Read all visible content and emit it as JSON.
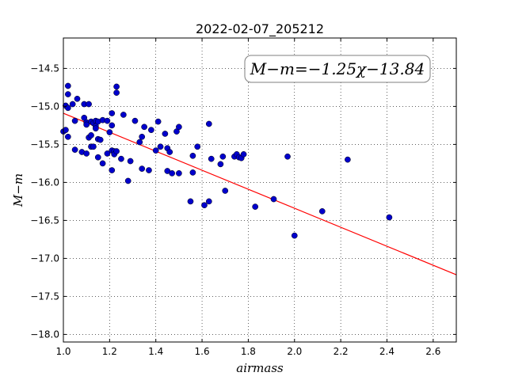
{
  "chart_data": {
    "type": "scatter",
    "title": "2022-02-07_205212",
    "xlabel": "airmass",
    "ylabel": "M−m",
    "xlim": [
      1.0,
      2.7
    ],
    "ylim": [
      -18.1,
      -14.1
    ],
    "y_inverted": true,
    "grid": true,
    "x_ticks": [
      1.0,
      1.2,
      1.4,
      1.6,
      1.8,
      2.0,
      2.2,
      2.4,
      2.6
    ],
    "x_tick_labels": [
      "1.0",
      "1.2",
      "1.4",
      "1.6",
      "1.8",
      "2.0",
      "2.2",
      "2.4",
      "2.6"
    ],
    "y_ticks": [
      -14.5,
      -15.0,
      -15.5,
      -16.0,
      -16.5,
      -17.0,
      -17.5,
      -18.0
    ],
    "y_tick_labels": [
      "−14.5",
      "−15.0",
      "−15.5",
      "−16.0",
      "−16.5",
      "−17.0",
      "−17.5",
      "−18.0"
    ],
    "annotation": "M−m=−1.25χ−13.84",
    "annotation_placement": "top-right",
    "colors": {
      "points": "#0000cc",
      "fit_line": "#ff0000"
    },
    "fit": {
      "slope": -1.25,
      "intercept": -13.84,
      "x_range": [
        1.0,
        2.7
      ]
    },
    "points": [
      {
        "x": 1.0,
        "y": -15.33
      },
      {
        "x": 1.01,
        "y": -14.99
      },
      {
        "x": 1.01,
        "y": -15.31
      },
      {
        "x": 1.02,
        "y": -14.73
      },
      {
        "x": 1.02,
        "y": -14.84
      },
      {
        "x": 1.02,
        "y": -15.02
      },
      {
        "x": 1.02,
        "y": -15.4
      },
      {
        "x": 1.04,
        "y": -14.97
      },
      {
        "x": 1.05,
        "y": -15.19
      },
      {
        "x": 1.05,
        "y": -15.57
      },
      {
        "x": 1.06,
        "y": -14.9
      },
      {
        "x": 1.08,
        "y": -15.6
      },
      {
        "x": 1.09,
        "y": -14.97
      },
      {
        "x": 1.09,
        "y": -15.15
      },
      {
        "x": 1.1,
        "y": -15.21
      },
      {
        "x": 1.1,
        "y": -15.24
      },
      {
        "x": 1.1,
        "y": -15.62
      },
      {
        "x": 1.11,
        "y": -14.97
      },
      {
        "x": 1.11,
        "y": -15.41
      },
      {
        "x": 1.12,
        "y": -15.2
      },
      {
        "x": 1.12,
        "y": -15.38
      },
      {
        "x": 1.12,
        "y": -15.53
      },
      {
        "x": 1.13,
        "y": -15.22
      },
      {
        "x": 1.13,
        "y": -15.53
      },
      {
        "x": 1.14,
        "y": -15.19
      },
      {
        "x": 1.14,
        "y": -15.26
      },
      {
        "x": 1.14,
        "y": -15.29
      },
      {
        "x": 1.15,
        "y": -15.2
      },
      {
        "x": 1.15,
        "y": -15.43
      },
      {
        "x": 1.15,
        "y": -15.67
      },
      {
        "x": 1.16,
        "y": -15.44
      },
      {
        "x": 1.17,
        "y": -15.75
      },
      {
        "x": 1.17,
        "y": -15.18
      },
      {
        "x": 1.19,
        "y": -15.19
      },
      {
        "x": 1.19,
        "y": -15.62
      },
      {
        "x": 1.2,
        "y": -15.34
      },
      {
        "x": 1.21,
        "y": -15.09
      },
      {
        "x": 1.21,
        "y": -15.25
      },
      {
        "x": 1.21,
        "y": -15.58
      },
      {
        "x": 1.21,
        "y": -15.84
      },
      {
        "x": 1.22,
        "y": -15.59
      },
      {
        "x": 1.22,
        "y": -15.63
      },
      {
        "x": 1.23,
        "y": -15.59
      },
      {
        "x": 1.23,
        "y": -14.74
      },
      {
        "x": 1.23,
        "y": -14.82
      },
      {
        "x": 1.25,
        "y": -15.69
      },
      {
        "x": 1.26,
        "y": -15.11
      },
      {
        "x": 1.28,
        "y": -15.98
      },
      {
        "x": 1.29,
        "y": -15.72
      },
      {
        "x": 1.31,
        "y": -15.19
      },
      {
        "x": 1.33,
        "y": -15.47
      },
      {
        "x": 1.34,
        "y": -15.4
      },
      {
        "x": 1.34,
        "y": -15.82
      },
      {
        "x": 1.35,
        "y": -15.27
      },
      {
        "x": 1.37,
        "y": -15.84
      },
      {
        "x": 1.38,
        "y": -15.31
      },
      {
        "x": 1.4,
        "y": -15.58
      },
      {
        "x": 1.41,
        "y": -15.2
      },
      {
        "x": 1.42,
        "y": -15.53
      },
      {
        "x": 1.44,
        "y": -15.36
      },
      {
        "x": 1.45,
        "y": -15.55
      },
      {
        "x": 1.45,
        "y": -15.85
      },
      {
        "x": 1.46,
        "y": -15.6
      },
      {
        "x": 1.47,
        "y": -15.88
      },
      {
        "x": 1.49,
        "y": -15.33
      },
      {
        "x": 1.5,
        "y": -15.27
      },
      {
        "x": 1.5,
        "y": -15.88
      },
      {
        "x": 1.55,
        "y": -16.25
      },
      {
        "x": 1.56,
        "y": -15.65
      },
      {
        "x": 1.56,
        "y": -15.87
      },
      {
        "x": 1.58,
        "y": -15.53
      },
      {
        "x": 1.61,
        "y": -16.3
      },
      {
        "x": 1.63,
        "y": -16.25
      },
      {
        "x": 1.63,
        "y": -15.23
      },
      {
        "x": 1.64,
        "y": -15.69
      },
      {
        "x": 1.68,
        "y": -15.76
      },
      {
        "x": 1.69,
        "y": -15.66
      },
      {
        "x": 1.7,
        "y": -16.11
      },
      {
        "x": 1.74,
        "y": -15.66
      },
      {
        "x": 1.75,
        "y": -15.63
      },
      {
        "x": 1.76,
        "y": -15.67
      },
      {
        "x": 1.77,
        "y": -15.68
      },
      {
        "x": 1.78,
        "y": -15.63
      },
      {
        "x": 1.83,
        "y": -16.32
      },
      {
        "x": 1.91,
        "y": -16.22
      },
      {
        "x": 1.97,
        "y": -15.66
      },
      {
        "x": 2.0,
        "y": -16.7
      },
      {
        "x": 2.12,
        "y": -16.38
      },
      {
        "x": 2.23,
        "y": -15.7
      },
      {
        "x": 2.41,
        "y": -16.46
      }
    ]
  }
}
